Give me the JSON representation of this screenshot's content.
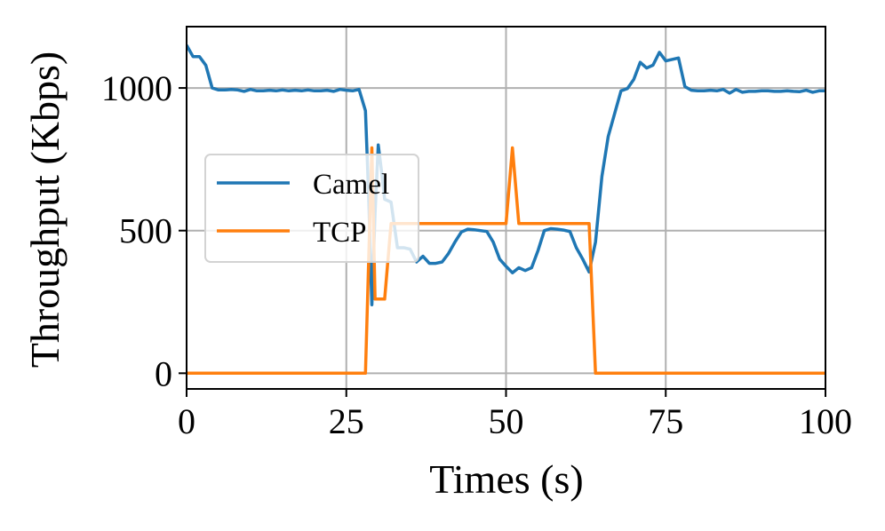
{
  "chart_data": {
    "type": "line",
    "xlabel": "Times (s)",
    "ylabel": "Throughput (Kbps)",
    "xlim": [
      0,
      100
    ],
    "ylim": [
      -55,
      1215
    ],
    "xticks": [
      0,
      25,
      50,
      75,
      100
    ],
    "yticks": [
      0,
      500,
      1000
    ],
    "grid": true,
    "legend_position": "center-left",
    "series": [
      {
        "name": "Camel",
        "color": "#1f77b4",
        "x": [
          0,
          1,
          2,
          3,
          4,
          5,
          6,
          7,
          8,
          9,
          10,
          11,
          12,
          13,
          14,
          15,
          16,
          17,
          18,
          19,
          20,
          21,
          22,
          23,
          24,
          25,
          26,
          27,
          28,
          28.5,
          29,
          29.5,
          30,
          30.5,
          31,
          32,
          33,
          34,
          35,
          36,
          37,
          38,
          39,
          40,
          41,
          42,
          43,
          44,
          45,
          46,
          47,
          48,
          49,
          50,
          51,
          52,
          53,
          54,
          55,
          56,
          57,
          58,
          59,
          60,
          61,
          62,
          63,
          64,
          65,
          66,
          67,
          68,
          69,
          70,
          71,
          72,
          73,
          74,
          75,
          76,
          77,
          78,
          79,
          80,
          81,
          82,
          83,
          84,
          85,
          86,
          87,
          88,
          89,
          90,
          91,
          92,
          93,
          94,
          95,
          96,
          97,
          98,
          99,
          100
        ],
        "values": [
          1150,
          1110,
          1110,
          1080,
          1000,
          993,
          993,
          995,
          993,
          988,
          995,
          990,
          990,
          992,
          990,
          993,
          990,
          992,
          990,
          993,
          990,
          990,
          992,
          988,
          995,
          992,
          990,
          995,
          920,
          620,
          240,
          560,
          800,
          710,
          610,
          600,
          440,
          440,
          435,
          390,
          410,
          385,
          385,
          390,
          420,
          460,
          495,
          505,
          503,
          500,
          497,
          460,
          400,
          375,
          352,
          370,
          360,
          370,
          430,
          500,
          507,
          505,
          502,
          497,
          440,
          400,
          355,
          460,
          690,
          830,
          910,
          990,
          998,
          1030,
          1090,
          1070,
          1080,
          1125,
          1095,
          1100,
          1105,
          1005,
          992,
          990,
          990,
          992,
          990,
          995,
          982,
          995,
          985,
          988,
          988,
          990,
          990,
          988,
          988,
          990,
          988,
          987,
          992,
          985,
          990,
          990
        ],
        "values_note": null
      },
      {
        "name": "TCP",
        "color": "#ff7f0e",
        "x": [
          0,
          28,
          29,
          29.5,
          30,
          31,
          32,
          33,
          50,
          51,
          52,
          63,
          64,
          100
        ],
        "values": [
          0,
          0,
          790,
          260,
          260,
          260,
          525,
          525,
          525,
          790,
          525,
          525,
          0,
          0
        ]
      }
    ]
  }
}
